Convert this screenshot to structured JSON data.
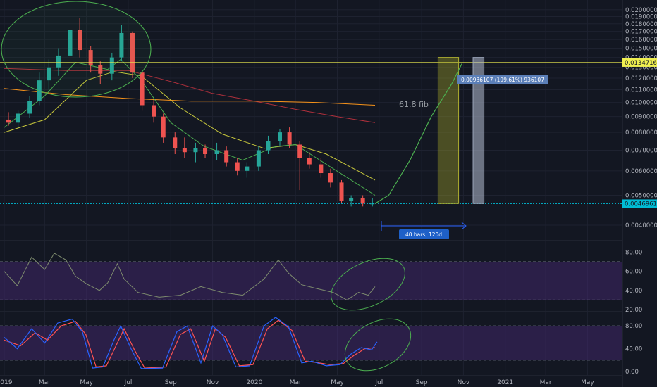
{
  "colors": {
    "background": "#131722",
    "grid": "#1e2230",
    "up_candle": "#26a69a",
    "down_candle": "#ef5350",
    "ema_fast": "#4caf50",
    "ema_slow": "#c8c83c",
    "sma_orange": "#f7931a",
    "sma_red": "#b0303c",
    "rsi_line": "#7e8c6e",
    "rsi_band": "#4a2a78",
    "stoch_k": "#2962ff",
    "stoch_d": "#ff5252",
    "annotation": "#4caf50",
    "fib_line": "#f0f050",
    "price_line": "#00bcd4"
  },
  "chart_data": [
    {
      "type": "candlestick",
      "yscale": "log",
      "ylim": [
        0.0036,
        0.0215
      ],
      "y_ticks": [
        "0.02000000",
        "0.01900000",
        "0.01800000",
        "0.01700000",
        "0.01600000",
        "0.01500000",
        "0.01400000",
        "0.01300000",
        "0.01200000",
        "0.01100000",
        "0.01000000",
        "0.00900000",
        "0.00800000",
        "0.00700000",
        "0.00600000",
        "0.00500000",
        "0.00400000"
      ],
      "x_ticks": [
        "2019",
        "Mar",
        "May",
        "Jul",
        "Sep",
        "Nov",
        "2020",
        "Mar",
        "May",
        "Jul",
        "Sep",
        "Nov",
        "2021",
        "Mar",
        "May"
      ],
      "candles": [
        {
          "d": "2019-01-01",
          "o": 0.0088,
          "h": 0.0093,
          "l": 0.0084,
          "c": 0.0086
        },
        {
          "d": "2019-01-15",
          "o": 0.0086,
          "h": 0.0094,
          "l": 0.0083,
          "c": 0.0092
        },
        {
          "d": "2019-02-01",
          "o": 0.0092,
          "h": 0.0105,
          "l": 0.0089,
          "c": 0.0101
        },
        {
          "d": "2019-02-15",
          "o": 0.0101,
          "h": 0.0125,
          "l": 0.0098,
          "c": 0.0118
        },
        {
          "d": "2019-03-01",
          "o": 0.0118,
          "h": 0.0138,
          "l": 0.011,
          "c": 0.013
        },
        {
          "d": "2019-03-15",
          "o": 0.013,
          "h": 0.015,
          "l": 0.0122,
          "c": 0.0142
        },
        {
          "d": "2019-04-01",
          "o": 0.0142,
          "h": 0.019,
          "l": 0.0135,
          "c": 0.0172
        },
        {
          "d": "2019-04-15",
          "o": 0.0172,
          "h": 0.0188,
          "l": 0.014,
          "c": 0.0148
        },
        {
          "d": "2019-05-01",
          "o": 0.0148,
          "h": 0.0152,
          "l": 0.0125,
          "c": 0.0132
        },
        {
          "d": "2019-05-15",
          "o": 0.0132,
          "h": 0.0136,
          "l": 0.0115,
          "c": 0.0124
        },
        {
          "d": "2019-06-01",
          "o": 0.0124,
          "h": 0.0145,
          "l": 0.0118,
          "c": 0.014
        },
        {
          "d": "2019-06-15",
          "o": 0.014,
          "h": 0.0178,
          "l": 0.0136,
          "c": 0.0168
        },
        {
          "d": "2019-07-01",
          "o": 0.0168,
          "h": 0.017,
          "l": 0.012,
          "c": 0.0125
        },
        {
          "d": "2019-07-15",
          "o": 0.0125,
          "h": 0.0128,
          "l": 0.0094,
          "c": 0.0098
        },
        {
          "d": "2019-08-01",
          "o": 0.0098,
          "h": 0.0102,
          "l": 0.0086,
          "c": 0.009
        },
        {
          "d": "2019-08-15",
          "o": 0.009,
          "h": 0.0092,
          "l": 0.0074,
          "c": 0.0077
        },
        {
          "d": "2019-09-01",
          "o": 0.0077,
          "h": 0.008,
          "l": 0.0068,
          "c": 0.0071
        },
        {
          "d": "2019-09-15",
          "o": 0.0071,
          "h": 0.0077,
          "l": 0.0066,
          "c": 0.0069
        },
        {
          "d": "2019-10-01",
          "o": 0.0069,
          "h": 0.0074,
          "l": 0.0064,
          "c": 0.0071
        },
        {
          "d": "2019-10-15",
          "o": 0.0071,
          "h": 0.0073,
          "l": 0.0066,
          "c": 0.0068
        },
        {
          "d": "2019-11-01",
          "o": 0.0068,
          "h": 0.0074,
          "l": 0.0065,
          "c": 0.007
        },
        {
          "d": "2019-11-15",
          "o": 0.007,
          "h": 0.0072,
          "l": 0.0062,
          "c": 0.0064
        },
        {
          "d": "2019-12-01",
          "o": 0.0064,
          "h": 0.0066,
          "l": 0.0058,
          "c": 0.006
        },
        {
          "d": "2019-12-15",
          "o": 0.006,
          "h": 0.0064,
          "l": 0.0057,
          "c": 0.0062
        },
        {
          "d": "2020-01-01",
          "o": 0.0062,
          "h": 0.0072,
          "l": 0.006,
          "c": 0.007
        },
        {
          "d": "2020-01-15",
          "o": 0.007,
          "h": 0.0078,
          "l": 0.0068,
          "c": 0.0075
        },
        {
          "d": "2020-02-01",
          "o": 0.0075,
          "h": 0.0082,
          "l": 0.0072,
          "c": 0.008
        },
        {
          "d": "2020-02-15",
          "o": 0.008,
          "h": 0.0083,
          "l": 0.0071,
          "c": 0.0073
        },
        {
          "d": "2020-03-01",
          "o": 0.0073,
          "h": 0.0075,
          "l": 0.0052,
          "c": 0.0066
        },
        {
          "d": "2020-03-15",
          "o": 0.0066,
          "h": 0.0069,
          "l": 0.0061,
          "c": 0.0063
        },
        {
          "d": "2020-04-01",
          "o": 0.0063,
          "h": 0.0066,
          "l": 0.0057,
          "c": 0.0059
        },
        {
          "d": "2020-04-15",
          "o": 0.0059,
          "h": 0.0061,
          "l": 0.0053,
          "c": 0.0055
        },
        {
          "d": "2020-05-01",
          "o": 0.0055,
          "h": 0.0056,
          "l": 0.0047,
          "c": 0.0048
        },
        {
          "d": "2020-05-15",
          "o": 0.0048,
          "h": 0.005,
          "l": 0.0046,
          "c": 0.0049
        },
        {
          "d": "2020-06-01",
          "o": 0.0049,
          "h": 0.005,
          "l": 0.0046,
          "c": 0.0047
        },
        {
          "d": "2020-06-15",
          "o": 0.0047,
          "h": 0.0049,
          "l": 0.0046,
          "c": 0.0047
        }
      ],
      "ema_fast": [
        {
          "d": "2019-01-01",
          "v": 0.0083
        },
        {
          "d": "2019-03-01",
          "v": 0.0105
        },
        {
          "d": "2019-04-15",
          "v": 0.0135
        },
        {
          "d": "2019-06-01",
          "v": 0.0128
        },
        {
          "d": "2019-06-20",
          "v": 0.0138
        },
        {
          "d": "2019-07-20",
          "v": 0.0118
        },
        {
          "d": "2019-09-01",
          "v": 0.0086
        },
        {
          "d": "2019-10-20",
          "v": 0.0072
        },
        {
          "d": "2019-12-15",
          "v": 0.0065
        },
        {
          "d": "2020-02-01",
          "v": 0.0072
        },
        {
          "d": "2020-03-01",
          "v": 0.0073
        },
        {
          "d": "2020-04-15",
          "v": 0.0063
        },
        {
          "d": "2020-06-25",
          "v": 0.005
        }
      ],
      "ema_slow": [
        {
          "d": "2019-01-01",
          "v": 0.008
        },
        {
          "d": "2019-03-01",
          "v": 0.0088
        },
        {
          "d": "2019-05-01",
          "v": 0.0118
        },
        {
          "d": "2019-06-10",
          "v": 0.0126
        },
        {
          "d": "2019-07-20",
          "v": 0.0122
        },
        {
          "d": "2019-09-15",
          "v": 0.0096
        },
        {
          "d": "2019-11-15",
          "v": 0.0079
        },
        {
          "d": "2020-01-15",
          "v": 0.0071
        },
        {
          "d": "2020-03-01",
          "v": 0.0073
        },
        {
          "d": "2020-04-15",
          "v": 0.0068
        },
        {
          "d": "2020-06-25",
          "v": 0.0056
        }
      ],
      "sma_orange": [
        {
          "d": "2019-01-01",
          "v": 0.0111
        },
        {
          "d": "2019-04-01",
          "v": 0.0106
        },
        {
          "d": "2019-07-01",
          "v": 0.0103
        },
        {
          "d": "2019-10-01",
          "v": 0.0101
        },
        {
          "d": "2020-01-01",
          "v": 0.0101
        },
        {
          "d": "2020-04-01",
          "v": 0.01
        },
        {
          "d": "2020-06-25",
          "v": 0.0098
        }
      ],
      "sma_red": [
        {
          "d": "2019-01-01",
          "v": 0.0129
        },
        {
          "d": "2019-04-01",
          "v": 0.0127
        },
        {
          "d": "2019-07-01",
          "v": 0.0127
        },
        {
          "d": "2019-09-01",
          "v": 0.0117
        },
        {
          "d": "2019-11-01",
          "v": 0.0107
        },
        {
          "d": "2020-01-01",
          "v": 0.0101
        },
        {
          "d": "2020-03-01",
          "v": 0.0095
        },
        {
          "d": "2020-05-01",
          "v": 0.009
        },
        {
          "d": "2020-06-25",
          "v": 0.0086
        }
      ],
      "projection_curve": [
        {
          "d": "2020-06-25",
          "v": 0.0047
        },
        {
          "d": "2020-07-15",
          "v": 0.005
        },
        {
          "d": "2020-08-15",
          "v": 0.0065
        },
        {
          "d": "2020-09-15",
          "v": 0.009
        },
        {
          "d": "2020-10-15",
          "v": 0.0115
        },
        {
          "d": "2020-10-30",
          "v": 0.0134
        }
      ],
      "boxes": [
        {
          "from": "2020-09-25",
          "to": "2020-10-25",
          "low": 0.0047,
          "high": 0.014,
          "kind": "yellow"
        },
        {
          "from": "2020-11-15",
          "to": "2020-12-01",
          "low": 0.0047,
          "high": 0.014,
          "kind": "gray"
        }
      ],
      "horizontal_levels": [
        {
          "name": "fib",
          "value": 0.01347169,
          "label": "0.01347169"
        },
        {
          "name": "last_price",
          "value": 0.0046961,
          "label": "0.00469610"
        }
      ],
      "annotations": {
        "fib_text": "61.8 fib",
        "measure_label": "0.00936107 (199.61%) 936107",
        "range_label": "40 bars, 120d"
      }
    },
    {
      "type": "line",
      "name": "rsi",
      "ylim": [
        20,
        90
      ],
      "y_ticks": [
        "80.00",
        "60.00",
        "40.00",
        "20.00"
      ],
      "band": [
        30,
        70
      ],
      "points": [
        {
          "d": "2019-01-01",
          "v": 60
        },
        {
          "d": "2019-01-20",
          "v": 45
        },
        {
          "d": "2019-02-10",
          "v": 75
        },
        {
          "d": "2019-03-01",
          "v": 62
        },
        {
          "d": "2019-03-15",
          "v": 79
        },
        {
          "d": "2019-04-01",
          "v": 72
        },
        {
          "d": "2019-04-15",
          "v": 55
        },
        {
          "d": "2019-05-01",
          "v": 47
        },
        {
          "d": "2019-05-20",
          "v": 40
        },
        {
          "d": "2019-06-01",
          "v": 48
        },
        {
          "d": "2019-06-15",
          "v": 68
        },
        {
          "d": "2019-06-25",
          "v": 52
        },
        {
          "d": "2019-07-15",
          "v": 38
        },
        {
          "d": "2019-08-15",
          "v": 33
        },
        {
          "d": "2019-09-15",
          "v": 35
        },
        {
          "d": "2019-10-15",
          "v": 44
        },
        {
          "d": "2019-11-15",
          "v": 38
        },
        {
          "d": "2019-12-15",
          "v": 35
        },
        {
          "d": "2020-01-15",
          "v": 52
        },
        {
          "d": "2020-02-05",
          "v": 72
        },
        {
          "d": "2020-02-20",
          "v": 58
        },
        {
          "d": "2020-03-10",
          "v": 46
        },
        {
          "d": "2020-04-01",
          "v": 42
        },
        {
          "d": "2020-04-25",
          "v": 38
        },
        {
          "d": "2020-05-15",
          "v": 30
        },
        {
          "d": "2020-06-01",
          "v": 38
        },
        {
          "d": "2020-06-15",
          "v": 35
        },
        {
          "d": "2020-06-25",
          "v": 44
        }
      ]
    },
    {
      "type": "line",
      "name": "stochastic",
      "ylim": [
        -5,
        100
      ],
      "y_ticks": [
        "80.00",
        "40.00",
        "0.00"
      ],
      "band": [
        20,
        80
      ],
      "k": [
        {
          "d": "2019-01-01",
          "v": 60
        },
        {
          "d": "2019-01-20",
          "v": 40
        },
        {
          "d": "2019-02-10",
          "v": 75
        },
        {
          "d": "2019-03-01",
          "v": 50
        },
        {
          "d": "2019-03-20",
          "v": 85
        },
        {
          "d": "2019-04-10",
          "v": 92
        },
        {
          "d": "2019-04-25",
          "v": 70
        },
        {
          "d": "2019-05-10",
          "v": 6
        },
        {
          "d": "2019-05-25",
          "v": 8
        },
        {
          "d": "2019-06-10",
          "v": 55
        },
        {
          "d": "2019-06-20",
          "v": 80
        },
        {
          "d": "2019-07-05",
          "v": 40
        },
        {
          "d": "2019-07-20",
          "v": 5
        },
        {
          "d": "2019-08-20",
          "v": 6
        },
        {
          "d": "2019-09-10",
          "v": 70
        },
        {
          "d": "2019-09-25",
          "v": 80
        },
        {
          "d": "2019-10-15",
          "v": 15
        },
        {
          "d": "2019-11-01",
          "v": 80
        },
        {
          "d": "2019-11-15",
          "v": 65
        },
        {
          "d": "2019-12-05",
          "v": 8
        },
        {
          "d": "2019-12-25",
          "v": 10
        },
        {
          "d": "2020-01-15",
          "v": 80
        },
        {
          "d": "2020-02-01",
          "v": 95
        },
        {
          "d": "2020-02-20",
          "v": 78
        },
        {
          "d": "2020-03-10",
          "v": 15
        },
        {
          "d": "2020-03-25",
          "v": 18
        },
        {
          "d": "2020-04-15",
          "v": 10
        },
        {
          "d": "2020-05-05",
          "v": 12
        },
        {
          "d": "2020-05-20",
          "v": 30
        },
        {
          "d": "2020-06-05",
          "v": 42
        },
        {
          "d": "2020-06-20",
          "v": 38
        },
        {
          "d": "2020-06-28",
          "v": 52
        }
      ],
      "d": [
        {
          "d": "2019-01-01",
          "v": 55
        },
        {
          "d": "2019-01-25",
          "v": 45
        },
        {
          "d": "2019-02-15",
          "v": 68
        },
        {
          "d": "2019-03-05",
          "v": 55
        },
        {
          "d": "2019-03-25",
          "v": 80
        },
        {
          "d": "2019-04-15",
          "v": 88
        },
        {
          "d": "2019-04-30",
          "v": 65
        },
        {
          "d": "2019-05-15",
          "v": 8
        },
        {
          "d": "2019-05-30",
          "v": 10
        },
        {
          "d": "2019-06-15",
          "v": 50
        },
        {
          "d": "2019-06-25",
          "v": 75
        },
        {
          "d": "2019-07-10",
          "v": 38
        },
        {
          "d": "2019-07-25",
          "v": 6
        },
        {
          "d": "2019-08-25",
          "v": 8
        },
        {
          "d": "2019-09-15",
          "v": 65
        },
        {
          "d": "2019-09-30",
          "v": 75
        },
        {
          "d": "2019-10-20",
          "v": 18
        },
        {
          "d": "2019-11-05",
          "v": 75
        },
        {
          "d": "2019-11-20",
          "v": 60
        },
        {
          "d": "2019-12-10",
          "v": 10
        },
        {
          "d": "2019-12-30",
          "v": 12
        },
        {
          "d": "2020-01-20",
          "v": 75
        },
        {
          "d": "2020-02-05",
          "v": 90
        },
        {
          "d": "2020-02-25",
          "v": 72
        },
        {
          "d": "2020-03-15",
          "v": 18
        },
        {
          "d": "2020-03-30",
          "v": 16
        },
        {
          "d": "2020-04-20",
          "v": 12
        },
        {
          "d": "2020-05-10",
          "v": 14
        },
        {
          "d": "2020-05-25",
          "v": 28
        },
        {
          "d": "2020-06-10",
          "v": 40
        },
        {
          "d": "2020-06-25",
          "v": 42
        }
      ]
    }
  ]
}
